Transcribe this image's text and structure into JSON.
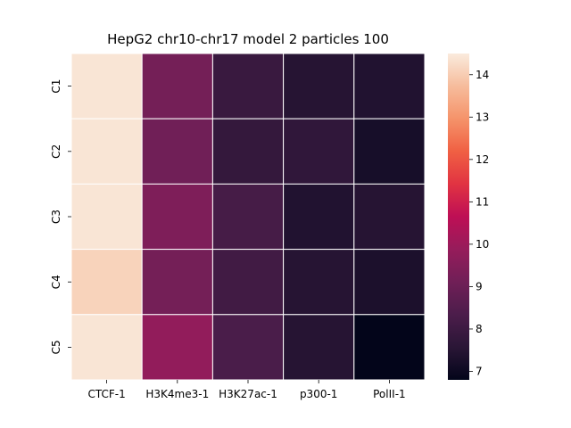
{
  "chart_data": {
    "type": "heatmap",
    "title": "HepG2 chr10-chr17 model 2 particles 100",
    "xlabel": "",
    "ylabel": "",
    "x_categories": [
      "CTCF-1",
      "H3K4me3-1",
      "H3K27ac-1",
      "p300-1",
      "PolII-1"
    ],
    "y_categories": [
      "C1",
      "C2",
      "C3",
      "C4",
      "C5"
    ],
    "values": [
      [
        14.4,
        9.2,
        7.9,
        7.5,
        7.4
      ],
      [
        14.4,
        9.1,
        7.8,
        7.7,
        7.2
      ],
      [
        14.4,
        9.4,
        8.2,
        7.4,
        7.5
      ],
      [
        14.1,
        9.2,
        8.1,
        7.5,
        7.3
      ],
      [
        14.4,
        9.8,
        8.3,
        7.5,
        6.8
      ]
    ],
    "colorbar": {
      "min": 6.8,
      "max": 14.5,
      "ticks": [
        7,
        8,
        9,
        10,
        11,
        12,
        13,
        14
      ],
      "colormap": "rocket",
      "colors": [
        "#03051a",
        "#2a1636",
        "#4c1d4b",
        "#701f57",
        "#961c5b",
        "#be0f55",
        "#e13342",
        "#f06043",
        "#f5936a",
        "#f6bc9c",
        "#faebdd"
      ]
    }
  }
}
